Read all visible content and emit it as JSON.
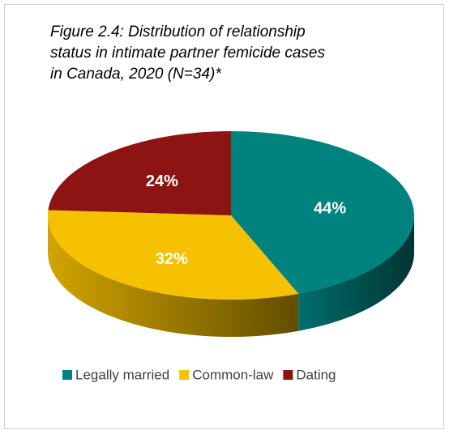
{
  "chart_data": {
    "type": "pie3d",
    "title": [
      "Figure 2.4: Distribution of relationship",
      "status in intimate partner femicide cases",
      "in Canada, 2020 (N=34)*"
    ],
    "categories": [
      "Legally married",
      "Common-law",
      "Dating"
    ],
    "values": [
      44,
      32,
      24
    ],
    "value_labels": [
      "44%",
      "32%",
      "24%"
    ],
    "colors": [
      "#00827f",
      "#f6c100",
      "#8e1414"
    ],
    "legend": "bottom"
  }
}
